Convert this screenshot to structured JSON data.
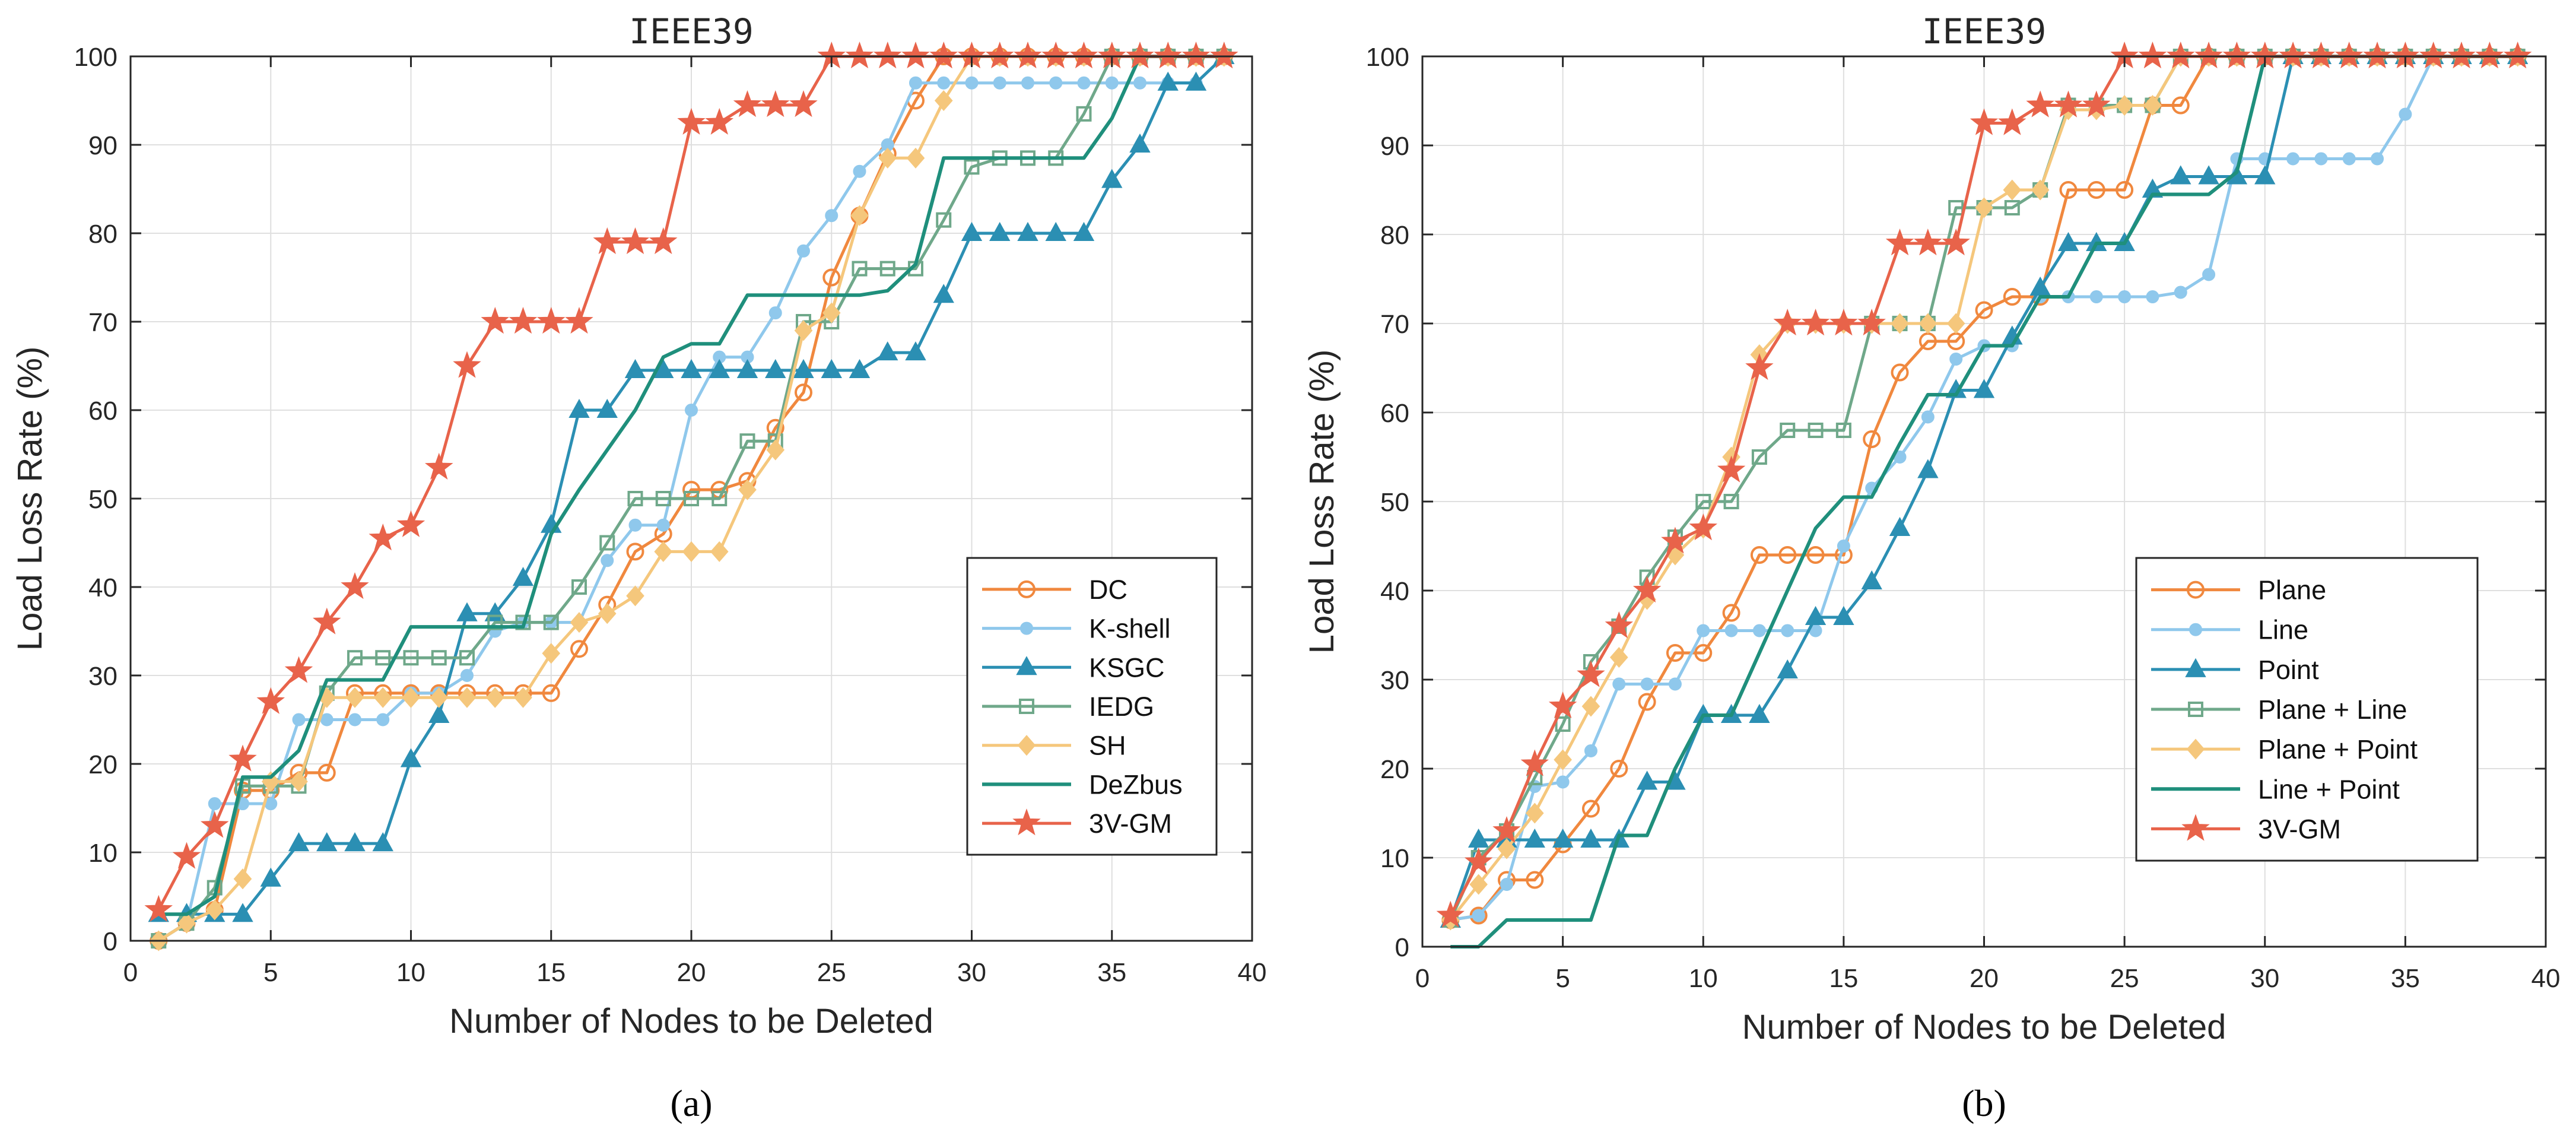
{
  "chart_data": [
    {
      "type": "line",
      "title": "IEEE39",
      "caption": "(a)",
      "xlabel": "Number of Nodes to be Deleted",
      "ylabel": "Load Loss Rate (%)",
      "xlim": [
        0,
        40
      ],
      "ylim": [
        0,
        100
      ],
      "xticks": [
        0,
        5,
        10,
        15,
        20,
        25,
        30,
        35,
        40
      ],
      "yticks": [
        0,
        10,
        20,
        30,
        40,
        50,
        60,
        70,
        80,
        90,
        100
      ],
      "grid": true,
      "legend_position": "bottom-right",
      "x": [
        1,
        2,
        3,
        4,
        5,
        6,
        7,
        8,
        9,
        10,
        11,
        12,
        13,
        14,
        15,
        16,
        17,
        18,
        19,
        20,
        21,
        22,
        23,
        24,
        25,
        26,
        27,
        28,
        29,
        30,
        31,
        32,
        33,
        34,
        35,
        36,
        37,
        38,
        39
      ],
      "series": [
        {
          "name": "DC",
          "color": "#f0883e",
          "marker": "circle",
          "values": [
            0,
            2,
            3.5,
            17,
            17,
            19,
            19,
            28,
            28,
            28,
            28,
            28,
            28,
            28,
            28,
            33,
            38,
            44,
            46,
            51,
            51,
            52,
            58,
            62,
            75,
            82,
            89,
            95,
            100,
            100,
            100,
            100,
            100,
            100,
            100,
            100,
            100,
            100,
            100
          ]
        },
        {
          "name": "K-shell",
          "color": "#8fc8ec",
          "marker": "dot",
          "values": [
            0,
            2,
            15.5,
            15.5,
            15.5,
            25,
            25,
            25,
            25,
            28,
            28,
            30,
            35,
            36,
            36,
            36,
            43,
            47,
            47,
            60,
            66,
            66,
            71,
            78,
            82,
            87,
            90,
            97,
            97,
            97,
            97,
            97,
            97,
            97,
            97,
            97,
            97,
            97,
            100
          ]
        },
        {
          "name": "KSGC",
          "color": "#2b8fb3",
          "marker": "triangle",
          "values": [
            3,
            3,
            3,
            3,
            7,
            11,
            11,
            11,
            11,
            20.5,
            25.5,
            37,
            37,
            41,
            47,
            60,
            60,
            64.5,
            64.5,
            64.5,
            64.5,
            64.5,
            64.5,
            64.5,
            64.5,
            64.5,
            66.5,
            66.5,
            73,
            80,
            80,
            80,
            80,
            80,
            86,
            90,
            97,
            97,
            100
          ]
        },
        {
          "name": "IEDG",
          "color": "#6fa88a",
          "marker": "square",
          "values": [
            0,
            2,
            6,
            17.5,
            17.5,
            17.5,
            28,
            32,
            32,
            32,
            32,
            32,
            36,
            36,
            36,
            40,
            45,
            50,
            50,
            50,
            50,
            56.5,
            56.5,
            70,
            70,
            76,
            76,
            76,
            81.5,
            87.5,
            88.5,
            88.5,
            88.5,
            93.5,
            100,
            100,
            100,
            100,
            100
          ]
        },
        {
          "name": "SH",
          "color": "#f5c77c",
          "marker": "diamond",
          "values": [
            0,
            2,
            3.5,
            7,
            18,
            18,
            27.5,
            27.5,
            27.5,
            27.5,
            27.5,
            27.5,
            27.5,
            27.5,
            32.5,
            36,
            37,
            39,
            44,
            44,
            44,
            51,
            55.5,
            69,
            71,
            82,
            88.5,
            88.5,
            95,
            100,
            100,
            100,
            100,
            100,
            100,
            100,
            100,
            100,
            100
          ]
        },
        {
          "name": "DeZbus",
          "color": "#1f8f7c",
          "marker": "none",
          "values": [
            3,
            3,
            5,
            18.5,
            18.5,
            21.5,
            29.5,
            29.5,
            29.5,
            35.5,
            35.5,
            35.5,
            35.5,
            35.5,
            46,
            51,
            55.5,
            60,
            66,
            67.5,
            67.5,
            73,
            73,
            73,
            73,
            73,
            73.5,
            76.5,
            88.5,
            88.5,
            88.5,
            88.5,
            88.5,
            88.5,
            93,
            100,
            100,
            100,
            100
          ]
        },
        {
          "name": "3V-GM",
          "color": "#e8634a",
          "marker": "star",
          "values": [
            3.5,
            9.5,
            13,
            20.5,
            27,
            30.5,
            36,
            40,
            45.5,
            47,
            53.5,
            65,
            70,
            70,
            70,
            70,
            79,
            79,
            79,
            92.5,
            92.5,
            94.5,
            94.5,
            94.5,
            100,
            100,
            100,
            100,
            100,
            100,
            100,
            100,
            100,
            100,
            100,
            100,
            100,
            100,
            100
          ]
        }
      ]
    },
    {
      "type": "line",
      "title": "IEEE39",
      "caption": "(b)",
      "xlabel": "Number of Nodes to be Deleted",
      "ylabel": "Load Loss Rate (%)",
      "xlim": [
        0,
        40
      ],
      "ylim": [
        0,
        100
      ],
      "xticks": [
        0,
        5,
        10,
        15,
        20,
        25,
        30,
        35,
        40
      ],
      "yticks": [
        0,
        10,
        20,
        30,
        40,
        50,
        60,
        70,
        80,
        90,
        100
      ],
      "grid": true,
      "legend_position": "middle-right",
      "x": [
        1,
        2,
        3,
        4,
        5,
        6,
        7,
        8,
        9,
        10,
        11,
        12,
        13,
        14,
        15,
        16,
        17,
        18,
        19,
        20,
        21,
        22,
        23,
        24,
        25,
        26,
        27,
        28,
        29,
        30,
        31,
        32,
        33,
        34,
        35,
        36,
        37,
        38,
        39
      ],
      "series": [
        {
          "name": "Plane",
          "color": "#f0883e",
          "marker": "circle",
          "values": [
            3,
            3.5,
            7.5,
            7.5,
            11.5,
            15.5,
            20,
            27.5,
            33,
            33,
            37.5,
            44,
            44,
            44,
            44,
            57,
            64.5,
            68,
            68,
            71.5,
            73,
            73,
            85,
            85,
            85,
            94.5,
            94.5,
            100,
            100,
            100,
            100,
            100,
            100,
            100,
            100,
            100,
            100,
            100,
            100
          ]
        },
        {
          "name": "Line",
          "color": "#8fc8ec",
          "marker": "dot",
          "values": [
            3,
            3.5,
            7,
            18,
            18.5,
            22,
            29.5,
            29.5,
            29.5,
            35.5,
            35.5,
            35.5,
            35.5,
            35.5,
            45,
            51.5,
            55,
            59.5,
            66,
            67.5,
            67.5,
            73,
            73,
            73,
            73,
            73,
            73.5,
            75.5,
            88.5,
            88.5,
            88.5,
            88.5,
            88.5,
            88.5,
            93.5,
            100,
            100,
            100,
            100
          ]
        },
        {
          "name": "Point",
          "color": "#2b8fb3",
          "marker": "triangle",
          "values": [
            3,
            12,
            12,
            12,
            12,
            12,
            12,
            18.5,
            18.5,
            26,
            26,
            26,
            31,
            37,
            37,
            41,
            47,
            53.5,
            62.5,
            62.5,
            68.5,
            74,
            79,
            79,
            79,
            85,
            86.5,
            86.5,
            86.5,
            86.5,
            100,
            100,
            100,
            100,
            100,
            100,
            100,
            100,
            100
          ]
        },
        {
          "name": "Plane + Line",
          "color": "#6fa88a",
          "marker": "square",
          "values": [
            3,
            10,
            13,
            19,
            25,
            32,
            36,
            41.5,
            46,
            50,
            50,
            55,
            58,
            58,
            58,
            70,
            70,
            70,
            83,
            83,
            83,
            85,
            94.5,
            94.5,
            94.5,
            94.5,
            100,
            100,
            100,
            100,
            100,
            100,
            100,
            100,
            100,
            100,
            100,
            100,
            100
          ]
        },
        {
          "name": "Plane + Point",
          "color": "#f5c77c",
          "marker": "diamond",
          "values": [
            3,
            7,
            11,
            15,
            21,
            27,
            32.5,
            39,
            44,
            47,
            55,
            66.5,
            70,
            70,
            70,
            70,
            70,
            70,
            70,
            83,
            85,
            85,
            94,
            94,
            94.5,
            94.5,
            100,
            100,
            100,
            100,
            100,
            100,
            100,
            100,
            100,
            100,
            100,
            100,
            100
          ]
        },
        {
          "name": "Line + Point",
          "color": "#1f8f7c",
          "marker": "none",
          "values": [
            0,
            0,
            3,
            3,
            3,
            3,
            12.5,
            12.5,
            20,
            26,
            26,
            33,
            40,
            47,
            50.5,
            50.5,
            56.5,
            62,
            62,
            67.5,
            67.5,
            73,
            73,
            79,
            79,
            84.5,
            84.5,
            84.5,
            87,
            100,
            100,
            100,
            100,
            100,
            100,
            100,
            100,
            100,
            100
          ]
        },
        {
          "name": "3V-GM",
          "color": "#e8634a",
          "marker": "star",
          "values": [
            3.5,
            9.5,
            13,
            20.5,
            27,
            30.5,
            36,
            40,
            45.5,
            47,
            53.5,
            65,
            70,
            70,
            70,
            70,
            79,
            79,
            79,
            92.5,
            92.5,
            94.5,
            94.5,
            94.5,
            100,
            100,
            100,
            100,
            100,
            100,
            100,
            100,
            100,
            100,
            100,
            100,
            100,
            100,
            100
          ]
        }
      ]
    }
  ]
}
